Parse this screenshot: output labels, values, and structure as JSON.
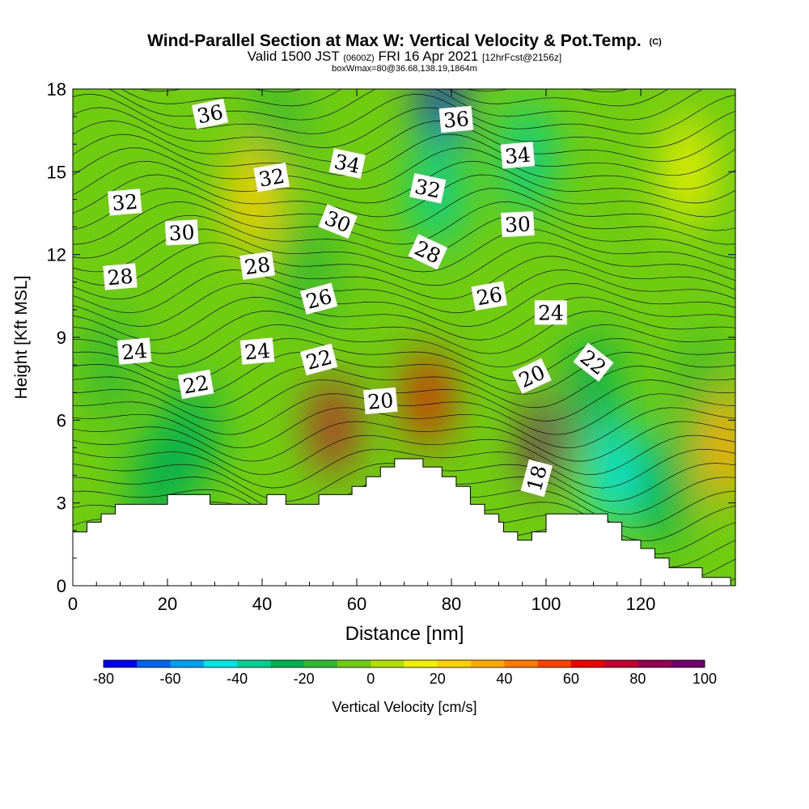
{
  "title": {
    "main": "Wind-Parallel Section at Max W: Vertical Velocity & Pot.Temp.",
    "copyright": "(C)",
    "valid_prefix": "Valid 1500 JST",
    "valid_utc": "(0600Z)",
    "valid_date": "FRI 16 Apr 2021",
    "forecast": "[12hrFcst@2156z]",
    "box_info": "boxWmax=80@36.68,138.19,1864m"
  },
  "chart_data": {
    "type": "heatmap",
    "xlabel": "Distance [nm]",
    "ylabel": "Height [Kft MSL]",
    "xlim": [
      0,
      140
    ],
    "ylim": [
      0,
      18
    ],
    "x_ticks": [
      "0",
      "20",
      "40",
      "60",
      "80",
      "100",
      "120"
    ],
    "y_ticks": [
      "0",
      "3",
      "6",
      "9",
      "12",
      "15",
      "18"
    ],
    "colorbar": {
      "label": "Vertical Velocity [cm/s]",
      "tick_labels": [
        "-80",
        "-60",
        "-40",
        "-20",
        "0",
        "20",
        "40",
        "60",
        "80",
        "100"
      ],
      "range": [
        -80,
        100
      ],
      "step": 10,
      "colors": [
        "#0000f0",
        "#0064f0",
        "#00a0f0",
        "#00e6e6",
        "#00d090",
        "#00b050",
        "#30b830",
        "#70cc10",
        "#b0e000",
        "#f0f000",
        "#ffd000",
        "#ffaa00",
        "#ff7800",
        "#ff4000",
        "#ee0000",
        "#c40030",
        "#960050",
        "#700070"
      ]
    },
    "velocity_features": [
      {
        "x": 55,
        "y": 5.8,
        "w_cm_s": 70
      },
      {
        "x": 75,
        "y": 6.8,
        "w_cm_s": 60
      },
      {
        "x": 100,
        "y": 5.2,
        "w_cm_s": 100
      },
      {
        "x": 78,
        "y": 17.2,
        "w_cm_s": -80
      },
      {
        "x": 77,
        "y": 14.2,
        "w_cm_s": -40
      },
      {
        "x": 96,
        "y": 15.5,
        "w_cm_s": -40
      },
      {
        "x": 114,
        "y": 4.2,
        "w_cm_s": -50
      },
      {
        "x": 110,
        "y": 7.2,
        "w_cm_s": -30
      },
      {
        "x": 43,
        "y": 16.5,
        "w_cm_s": -20
      },
      {
        "x": 50,
        "y": 11.5,
        "w_cm_s": -15
      },
      {
        "x": 25,
        "y": 5.5,
        "w_cm_s": -25
      },
      {
        "x": 18,
        "y": 3.6,
        "w_cm_s": -30
      },
      {
        "x": 125,
        "y": 3.5,
        "w_cm_s": -30
      },
      {
        "x": 133,
        "y": 7,
        "w_cm_s": -15
      },
      {
        "x": 38,
        "y": 14,
        "w_cm_s": 25
      },
      {
        "x": 8,
        "y": 8,
        "w_cm_s": -12
      },
      {
        "x": 138,
        "y": 5,
        "w_cm_s": 35
      },
      {
        "x": 130,
        "y": 15,
        "w_cm_s": 18
      }
    ],
    "isentrope_labels": [
      {
        "text": "36",
        "x": 29,
        "y": 17.1,
        "angle": -12
      },
      {
        "text": "36",
        "x": 81,
        "y": 16.9,
        "angle": -5
      },
      {
        "text": "34",
        "x": 58,
        "y": 15.3,
        "angle": 12
      },
      {
        "text": "34",
        "x": 94,
        "y": 15.6,
        "angle": -5
      },
      {
        "text": "32",
        "x": 11,
        "y": 13.9,
        "angle": -5
      },
      {
        "text": "32",
        "x": 42,
        "y": 14.8,
        "angle": -10
      },
      {
        "text": "32",
        "x": 75,
        "y": 14.4,
        "angle": 12
      },
      {
        "text": "30",
        "x": 23,
        "y": 12.8,
        "angle": -3
      },
      {
        "text": "30",
        "x": 56,
        "y": 13.2,
        "angle": 22
      },
      {
        "text": "30",
        "x": 94,
        "y": 13.1,
        "angle": -3
      },
      {
        "text": "28",
        "x": 10,
        "y": 11.2,
        "angle": -5
      },
      {
        "text": "28",
        "x": 39,
        "y": 11.6,
        "angle": -8
      },
      {
        "text": "28",
        "x": 75,
        "y": 12.1,
        "angle": 25
      },
      {
        "text": "26",
        "x": 52,
        "y": 10.4,
        "angle": -15
      },
      {
        "text": "26",
        "x": 88,
        "y": 10.5,
        "angle": -10
      },
      {
        "text": "24",
        "x": 13,
        "y": 8.5,
        "angle": -5
      },
      {
        "text": "24",
        "x": 39,
        "y": 8.5,
        "angle": -5
      },
      {
        "text": "24",
        "x": 101,
        "y": 9.9,
        "angle": 0
      },
      {
        "text": "22",
        "x": 26,
        "y": 7.3,
        "angle": -10
      },
      {
        "text": "22",
        "x": 52,
        "y": 8.2,
        "angle": -15
      },
      {
        "text": "22",
        "x": 110,
        "y": 8.1,
        "angle": 38
      },
      {
        "text": "20",
        "x": 65,
        "y": 6.7,
        "angle": -5
      },
      {
        "text": "20",
        "x": 97,
        "y": 7.6,
        "angle": -25
      },
      {
        "text": "18",
        "x": 98,
        "y": 3.9,
        "angle": -75
      }
    ],
    "terrain": [
      [
        0,
        1.95
      ],
      [
        3,
        1.95
      ],
      [
        3,
        2.3
      ],
      [
        6,
        2.3
      ],
      [
        6,
        2.6
      ],
      [
        9,
        2.6
      ],
      [
        9,
        2.95
      ],
      [
        20,
        2.95
      ],
      [
        20,
        3.3
      ],
      [
        29,
        3.3
      ],
      [
        29,
        2.95
      ],
      [
        41,
        2.95
      ],
      [
        41,
        3.3
      ],
      [
        45,
        3.3
      ],
      [
        45,
        2.95
      ],
      [
        52,
        2.95
      ],
      [
        52,
        3.3
      ],
      [
        59,
        3.3
      ],
      [
        59,
        3.6
      ],
      [
        62,
        3.6
      ],
      [
        62,
        3.95
      ],
      [
        65,
        3.95
      ],
      [
        65,
        4.3
      ],
      [
        68,
        4.3
      ],
      [
        68,
        4.6
      ],
      [
        74,
        4.6
      ],
      [
        74,
        4.3
      ],
      [
        78,
        4.3
      ],
      [
        78,
        3.95
      ],
      [
        81,
        3.95
      ],
      [
        81,
        3.6
      ],
      [
        84,
        3.6
      ],
      [
        84,
        2.95
      ],
      [
        87,
        2.95
      ],
      [
        87,
        2.6
      ],
      [
        90,
        2.6
      ],
      [
        90,
        2.3
      ],
      [
        91,
        2.3
      ],
      [
        91,
        1.95
      ],
      [
        94,
        1.95
      ],
      [
        94,
        1.65
      ],
      [
        97,
        1.65
      ],
      [
        97,
        1.95
      ],
      [
        100,
        1.95
      ],
      [
        100,
        2.6
      ],
      [
        113,
        2.6
      ],
      [
        113,
        2.3
      ],
      [
        116,
        2.3
      ],
      [
        116,
        1.65
      ],
      [
        120,
        1.65
      ],
      [
        120,
        1.35
      ],
      [
        123,
        1.35
      ],
      [
        123,
        1.0
      ],
      [
        126,
        1.0
      ],
      [
        126,
        0.65
      ],
      [
        133,
        0.65
      ],
      [
        133,
        0.3
      ],
      [
        139,
        0.3
      ]
    ]
  }
}
